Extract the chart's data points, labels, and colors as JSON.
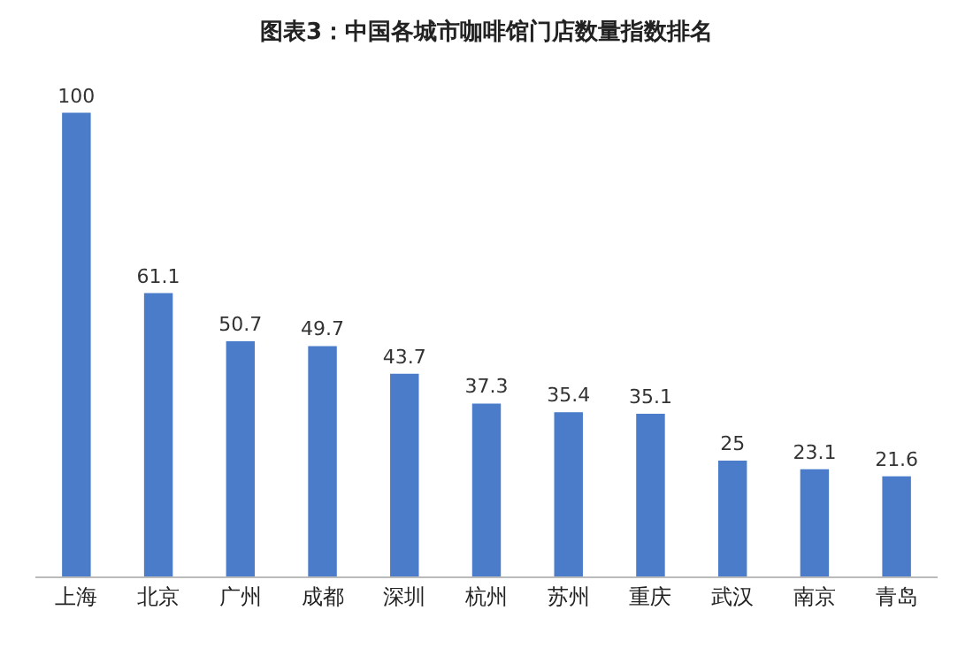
{
  "chart_data": {
    "type": "bar",
    "title": "图表3：中国各城市咖啡馆门店数量指数排名",
    "categories": [
      "上海",
      "北京",
      "广州",
      "成都",
      "深圳",
      "杭州",
      "苏州",
      "重庆",
      "武汉",
      "南京",
      "青岛"
    ],
    "values": [
      100,
      61.1,
      50.7,
      49.7,
      43.7,
      37.3,
      35.4,
      35.1,
      25,
      23.1,
      21.6
    ],
    "color": "#4a7cc9",
    "data_labels": true
  }
}
